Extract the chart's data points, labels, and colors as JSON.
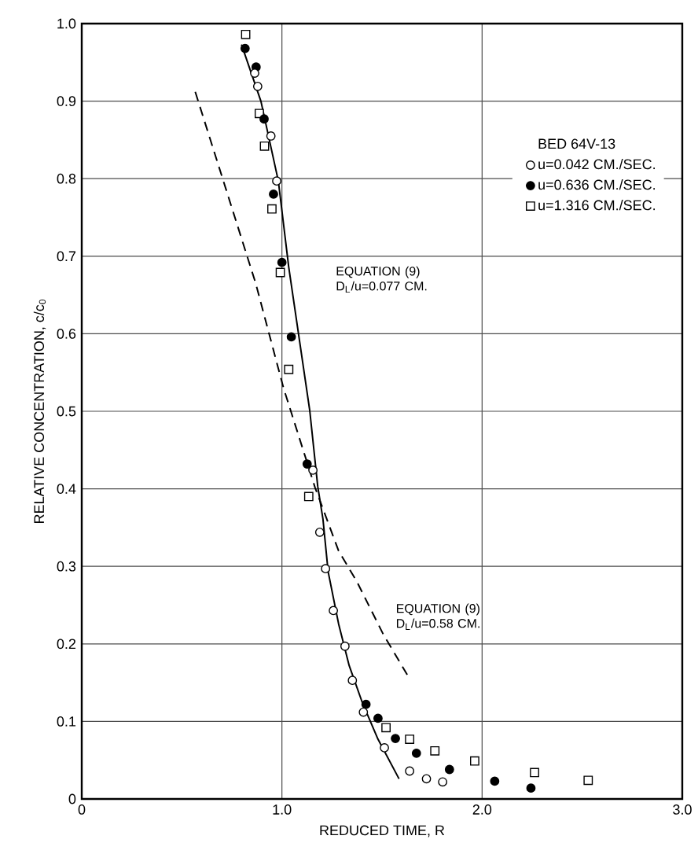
{
  "chart_data": {
    "type": "scatter",
    "xlabel": "REDUCED TIME, R",
    "ylabel": "RELATIVE CONCENTRATION, c/c$_{0}$",
    "legend_title": "BED 64V-13",
    "xlim": [
      0,
      3
    ],
    "ylim": [
      0,
      1
    ],
    "xticks": [
      0,
      {
        "value": 1,
        "label": "1.0"
      },
      {
        "value": 2,
        "label": "2.0"
      },
      {
        "value": 3,
        "label": "3.0"
      }
    ],
    "yticks": [
      0,
      0.1,
      0.2,
      0.3,
      0.4,
      0.5,
      0.6,
      0.7,
      0.8,
      0.9,
      {
        "value": 1,
        "label": "1.0"
      }
    ],
    "grid": true,
    "legend": "right",
    "series": [
      {
        "name": "u=0.042 CM./SEC.",
        "color": "#ffffff",
        "marker": "circle",
        "x": [
          0.864,
          0.879,
          0.945,
          0.974,
          1.155,
          1.189,
          1.218,
          1.257,
          1.315,
          1.352,
          1.407,
          1.512,
          1.638,
          1.722,
          1.803
        ],
        "values": [
          0.936,
          0.919,
          0.855,
          0.797,
          0.424,
          0.344,
          0.297,
          0.243,
          0.197,
          0.153,
          0.112,
          0.066,
          0.036,
          0.026,
          0.022
        ]
      },
      {
        "name": "u=0.636 CM./SEC.",
        "color": "#000000",
        "marker": "circle",
        "x": [
          0.816,
          0.871,
          0.911,
          0.958,
          1.0,
          1.047,
          1.126,
          1.42,
          1.48,
          1.567,
          1.672,
          1.837,
          2.063,
          2.244
        ],
        "values": [
          0.968,
          0.944,
          0.877,
          0.78,
          0.692,
          0.596,
          0.432,
          0.122,
          0.104,
          0.078,
          0.059,
          0.038,
          0.023,
          0.014
        ]
      },
      {
        "name": "u=1.316 CM./SEC.",
        "color": "#ffffff",
        "marker": "square",
        "x": [
          0.819,
          0.887,
          0.913,
          0.95,
          0.992,
          1.034,
          1.134,
          1.52,
          1.638,
          1.764,
          1.963,
          2.262,
          2.53
        ],
        "values": [
          0.986,
          0.884,
          0.842,
          0.761,
          0.679,
          0.554,
          0.39,
          0.092,
          0.077,
          0.062,
          0.049,
          0.034,
          0.024
        ]
      },
      {
        "type": "line",
        "color": "#000000",
        "line_style": "solid",
        "marker": "none",
        "x": [
          0.798,
          0.895,
          0.982,
          1.034,
          1.139,
          1.179,
          1.205,
          1.231,
          1.283,
          1.336,
          1.402,
          1.48,
          1.585
        ],
        "values": [
          0.973,
          0.9,
          0.797,
          0.686,
          0.501,
          0.403,
          0.361,
          0.293,
          0.226,
          0.172,
          0.124,
          0.077,
          0.026
        ]
      },
      {
        "type": "line",
        "color": "#000000",
        "line_style": "dashed",
        "marker": "none",
        "x": [
          0.567,
          0.869,
          1.008,
          1.165,
          1.283,
          1.375,
          1.507,
          1.638
        ],
        "values": [
          0.912,
          0.665,
          0.53,
          0.402,
          0.32,
          0.28,
          0.212,
          0.155
        ]
      }
    ],
    "annotations": [
      "EQUATION (9) D$_{L}$/u=0.077 CM.",
      "EQUATION (9) D$_{L}$/u=0.58 CM."
    ]
  }
}
